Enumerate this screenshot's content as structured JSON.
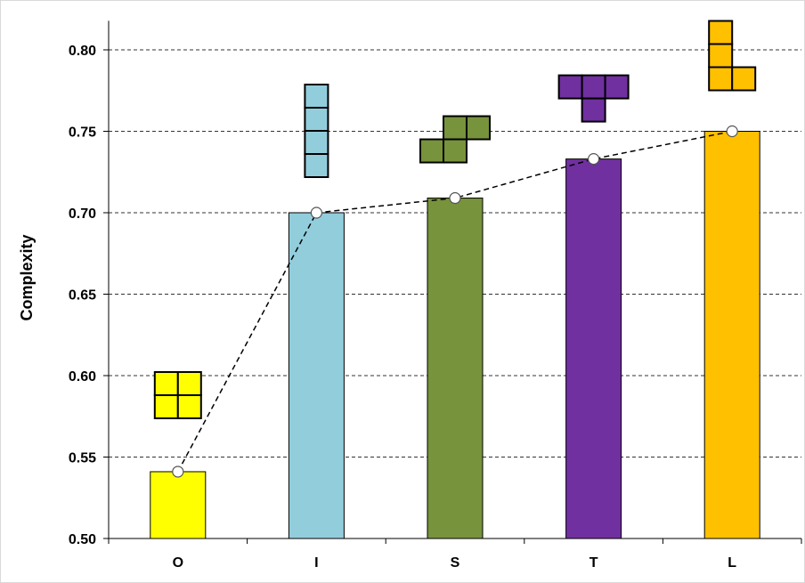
{
  "chart_data": {
    "type": "bar",
    "title": "",
    "xlabel": "",
    "ylabel": "Complexity",
    "categories": [
      "O",
      "I",
      "S",
      "T",
      "L"
    ],
    "values": [
      0.541,
      0.7,
      0.709,
      0.733,
      0.75
    ],
    "colors": [
      "#ffff00",
      "#92cddc",
      "#77933c",
      "#7030a0",
      "#ffc000"
    ],
    "ylim": [
      0.5,
      0.82
    ],
    "yticks": [
      "0.50",
      "0.55",
      "0.60",
      "0.65",
      "0.70",
      "0.75",
      "0.80"
    ],
    "grid": "horizontal dashed",
    "overlay_line": {
      "style": "dashed",
      "markers": "open circles",
      "values": [
        0.541,
        0.7,
        0.709,
        0.733,
        0.75
      ]
    },
    "pictograms": [
      "tetromino-O",
      "tetromino-I",
      "tetromino-S",
      "tetromino-T",
      "tetromino-L"
    ]
  }
}
